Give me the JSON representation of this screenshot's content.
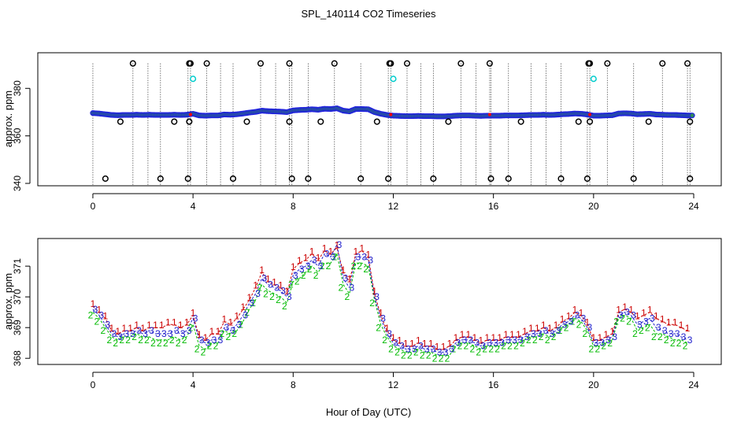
{
  "page_title": "SPL_140114  CO2 Timeseries",
  "shared_xlabel": "Hour of Day (UTC)",
  "chart_data": [
    {
      "type": "scatter",
      "panel": "top",
      "ylabel": "approx. ppm",
      "xlim": [
        -2.2,
        25.1
      ],
      "ylim": [
        339,
        395
      ],
      "xticks": [
        0,
        4,
        8,
        12,
        16,
        20,
        24
      ],
      "yticks": [
        340,
        360,
        380
      ],
      "colors": {
        "main": "#2020e0",
        "fill": "#2e8b57",
        "outlier": "#000000",
        "mid": "#00cccc",
        "highlight": "#ff0000"
      },
      "series_main": {
        "x": [
          0,
          0.25,
          0.5,
          0.75,
          1.0,
          1.25,
          1.5,
          1.75,
          2.0,
          2.25,
          2.5,
          2.75,
          3.0,
          3.25,
          3.5,
          3.75,
          4.0,
          4.25,
          4.5,
          4.75,
          5.0,
          5.25,
          5.5,
          5.75,
          6.0,
          6.25,
          6.5,
          6.75,
          7.0,
          7.25,
          7.5,
          7.75,
          8.0,
          8.25,
          8.5,
          8.75,
          9.0,
          9.25,
          9.5,
          9.75,
          10.0,
          10.25,
          10.5,
          10.75,
          11.0,
          11.25,
          11.5,
          11.75,
          12.0,
          12.25,
          12.5,
          12.75,
          13.0,
          13.25,
          13.5,
          13.75,
          14.0,
          14.25,
          14.5,
          14.75,
          15.0,
          15.25,
          15.5,
          15.75,
          16.0,
          16.25,
          16.5,
          16.75,
          17.0,
          17.25,
          17.5,
          17.75,
          18.0,
          18.25,
          18.5,
          18.75,
          19.0,
          19.25,
          19.5,
          19.75,
          20.0,
          20.25,
          20.5,
          20.75,
          21.0,
          21.25,
          21.5,
          21.75,
          22.0,
          22.25,
          22.5,
          22.75,
          23.0,
          23.25,
          23.5,
          23.75
        ],
        "y": [
          369.6,
          369.4,
          369.1,
          368.8,
          368.7,
          368.8,
          368.8,
          368.9,
          368.8,
          368.9,
          368.8,
          368.8,
          368.8,
          368.9,
          368.8,
          368.9,
          369.3,
          368.6,
          368.5,
          368.6,
          368.6,
          369.0,
          368.9,
          369.1,
          369.4,
          369.8,
          370.1,
          370.6,
          370.4,
          370.3,
          370.2,
          370.0,
          370.7,
          370.9,
          371.0,
          371.2,
          371.0,
          371.4,
          371.3,
          371.6,
          370.6,
          370.3,
          371.3,
          371.3,
          371.2,
          370.0,
          369.3,
          368.8,
          368.5,
          368.4,
          368.3,
          368.3,
          368.4,
          368.3,
          368.3,
          368.2,
          368.2,
          368.3,
          368.5,
          368.6,
          368.6,
          368.5,
          368.4,
          368.5,
          368.5,
          368.5,
          368.6,
          368.6,
          368.6,
          368.7,
          368.8,
          368.8,
          368.9,
          368.8,
          368.9,
          369.1,
          369.2,
          369.4,
          369.3,
          369.0,
          368.5,
          368.5,
          368.6,
          368.7,
          369.4,
          369.5,
          369.4,
          369.1,
          369.2,
          369.3,
          369.0,
          368.9,
          368.8,
          368.8,
          368.7,
          368.6
        ]
      },
      "outliers_high": [
        1.6,
        3.85,
        3.9,
        4.55,
        6.7,
        7.85,
        9.65,
        11.85,
        11.9,
        12.55,
        14.7,
        15.85,
        19.8,
        19.85,
        20.55,
        22.75,
        23.75
      ],
      "outliers_low_342": [
        0.5,
        2.7,
        3.8,
        5.6,
        7.95,
        8.6,
        10.7,
        11.8,
        13.6,
        15.9,
        16.6,
        18.7,
        19.75,
        21.6,
        23.85
      ],
      "outliers_366": [
        1.1,
        3.25,
        3.85,
        6.15,
        7.85,
        9.1,
        11.35,
        14.2,
        17.1,
        19.4,
        19.85,
        22.2,
        23.85
      ],
      "mid_points": [
        4.0,
        12.0,
        20.0
      ],
      "vertical_lines": [
        0.0,
        1.6,
        2.2,
        2.7,
        3.8,
        3.9,
        4.55,
        5.1,
        5.6,
        6.7,
        7.3,
        7.85,
        7.95,
        8.6,
        9.65,
        10.7,
        11.8,
        11.9,
        12.55,
        13.1,
        13.6,
        14.7,
        15.3,
        15.85,
        15.9,
        16.6,
        17.5,
        18.1,
        18.7,
        19.75,
        19.85,
        20.55,
        21.6,
        22.75,
        23.75,
        23.85
      ]
    },
    {
      "type": "line",
      "panel": "bottom",
      "ylabel": "approx. ppm",
      "xlim": [
        -2.2,
        25.1
      ],
      "ylim": [
        367.8,
        371.9
      ],
      "xticks": [
        0,
        4,
        8,
        12,
        16,
        20,
        24
      ],
      "yticks": [
        368,
        369,
        370,
        371
      ],
      "x": [
        0,
        0.25,
        0.5,
        0.75,
        1.0,
        1.25,
        1.5,
        1.75,
        2.0,
        2.25,
        2.5,
        2.75,
        3.0,
        3.25,
        3.5,
        3.75,
        4.0,
        4.25,
        4.5,
        4.75,
        5.0,
        5.25,
        5.5,
        5.75,
        6.0,
        6.25,
        6.5,
        6.75,
        7.0,
        7.25,
        7.5,
        7.75,
        8.0,
        8.25,
        8.5,
        8.75,
        9.0,
        9.25,
        9.5,
        9.75,
        10.0,
        10.25,
        10.5,
        10.75,
        11.0,
        11.25,
        11.5,
        11.75,
        12.0,
        12.25,
        12.5,
        12.75,
        13.0,
        13.25,
        13.5,
        13.75,
        14.0,
        14.25,
        14.5,
        14.75,
        15.0,
        15.25,
        15.5,
        15.75,
        16.0,
        16.25,
        16.5,
        16.75,
        17.0,
        17.25,
        17.5,
        17.75,
        18.0,
        18.25,
        18.5,
        18.75,
        19.0,
        19.25,
        19.5,
        19.75,
        20.0,
        20.25,
        20.5,
        20.75,
        21.0,
        21.25,
        21.5,
        21.75,
        22.0,
        22.25,
        22.5,
        22.75,
        23.0,
        23.25,
        23.5,
        23.75
      ],
      "series": [
        {
          "name": "1",
          "color": "#cc0000",
          "values": [
            369.7,
            369.5,
            369.3,
            368.9,
            368.8,
            368.9,
            368.9,
            369.0,
            368.9,
            369.0,
            369.0,
            369.0,
            369.1,
            369.1,
            369.0,
            369.1,
            369.4,
            368.7,
            368.6,
            368.8,
            368.8,
            369.2,
            369.1,
            369.3,
            369.6,
            369.9,
            370.3,
            370.8,
            370.5,
            370.4,
            370.3,
            370.1,
            370.9,
            371.1,
            371.2,
            371.4,
            371.2,
            371.5,
            371.4,
            371.6,
            370.8,
            370.5,
            371.4,
            371.5,
            371.3,
            370.1,
            369.4,
            368.9,
            368.6,
            368.5,
            368.4,
            368.4,
            368.5,
            368.4,
            368.4,
            368.3,
            368.3,
            368.4,
            368.6,
            368.7,
            368.7,
            368.6,
            368.5,
            368.6,
            368.6,
            368.6,
            368.7,
            368.7,
            368.7,
            368.8,
            368.9,
            368.9,
            369.0,
            368.9,
            369.0,
            369.2,
            369.3,
            369.5,
            369.4,
            369.1,
            368.6,
            368.6,
            368.7,
            368.8,
            369.5,
            369.6,
            369.5,
            369.3,
            369.4,
            369.5,
            369.3,
            369.2,
            369.1,
            369.1,
            369.0,
            368.9
          ]
        },
        {
          "name": "2",
          "color": "#00bb00",
          "values": [
            369.5,
            369.3,
            369.0,
            368.7,
            368.6,
            368.7,
            368.7,
            368.8,
            368.7,
            368.7,
            368.6,
            368.6,
            368.6,
            368.7,
            368.6,
            368.7,
            369.1,
            368.4,
            368.3,
            368.5,
            368.5,
            368.9,
            368.8,
            368.9,
            369.2,
            369.6,
            369.9,
            370.4,
            370.2,
            370.1,
            370.0,
            369.8,
            370.5,
            370.6,
            370.8,
            371.0,
            370.8,
            371.1,
            371.1,
            371.4,
            370.4,
            370.1,
            371.1,
            371.1,
            371.0,
            369.9,
            369.1,
            368.7,
            368.4,
            368.3,
            368.2,
            368.2,
            368.3,
            368.2,
            368.2,
            368.1,
            368.1,
            368.1,
            368.4,
            368.5,
            368.5,
            368.4,
            368.3,
            368.4,
            368.4,
            368.4,
            368.5,
            368.5,
            368.5,
            368.6,
            368.7,
            368.7,
            368.8,
            368.7,
            368.8,
            369.0,
            369.1,
            369.3,
            369.2,
            368.9,
            368.4,
            368.4,
            368.5,
            368.6,
            369.3,
            369.4,
            369.3,
            368.9,
            369.0,
            369.1,
            368.8,
            368.8,
            368.7,
            368.6,
            368.6,
            368.5
          ]
        },
        {
          "name": "3",
          "color": "#2020cc",
          "values": [
            369.6,
            369.4,
            369.1,
            368.8,
            368.7,
            368.8,
            368.8,
            368.9,
            368.8,
            368.9,
            368.8,
            368.8,
            368.8,
            368.9,
            368.8,
            368.9,
            369.3,
            368.6,
            368.5,
            368.6,
            368.6,
            369.0,
            368.9,
            369.1,
            369.4,
            369.8,
            370.1,
            370.6,
            370.4,
            370.3,
            370.2,
            370.0,
            370.7,
            370.9,
            371.0,
            371.2,
            371.0,
            371.4,
            371.3,
            371.7,
            370.6,
            370.3,
            371.3,
            371.3,
            371.2,
            370.0,
            369.3,
            368.8,
            368.5,
            368.4,
            368.3,
            368.3,
            368.4,
            368.3,
            368.3,
            368.2,
            368.2,
            368.3,
            368.5,
            368.6,
            368.6,
            368.5,
            368.4,
            368.5,
            368.5,
            368.5,
            368.6,
            368.6,
            368.6,
            368.7,
            368.8,
            368.8,
            368.9,
            368.8,
            368.9,
            369.1,
            369.2,
            369.4,
            369.3,
            369.0,
            368.5,
            368.5,
            368.6,
            368.7,
            369.4,
            369.5,
            369.4,
            369.1,
            369.2,
            369.3,
            369.0,
            368.9,
            368.8,
            368.8,
            368.7,
            368.6
          ]
        }
      ]
    }
  ]
}
